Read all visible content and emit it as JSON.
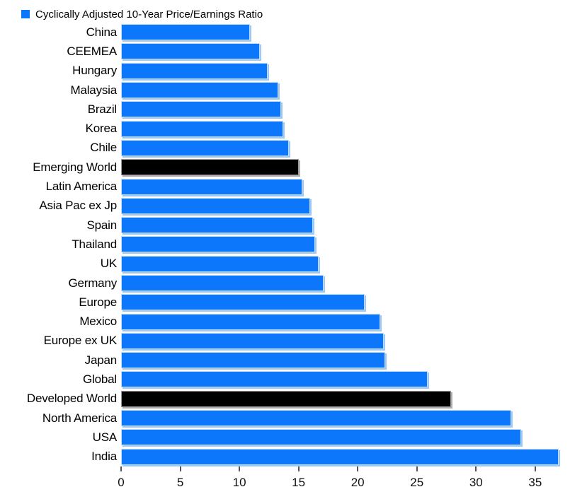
{
  "legend": {
    "label": "Cyclically Adjusted 10-Year Price/Earnings Ratio",
    "swatch_color": "#0d77fb"
  },
  "chart_data": {
    "type": "bar",
    "orientation": "horizontal",
    "title": "Cyclically Adjusted 10-Year Price/Earnings Ratio",
    "xlabel": "",
    "ylabel": "",
    "xlim": [
      0,
      37.5
    ],
    "x_ticks": [
      0,
      5,
      10,
      15,
      20,
      25,
      30,
      35
    ],
    "grid": false,
    "legend_position": "top-left",
    "bar_color": "#0d77fb",
    "highlight_color": "#000000",
    "categories": [
      "China",
      "CEEMEA",
      "Hungary",
      "Malaysia",
      "Brazil",
      "Korea",
      "Chile",
      "Emerging World",
      "Latin America",
      "Asia Pac ex Jp",
      "Spain",
      "Thailand",
      "UK",
      "Germany",
      "Europe",
      "Mexico",
      "Europe ex UK",
      "Japan",
      "Global",
      "Developed World",
      "North America",
      "USA",
      "India"
    ],
    "values": [
      10.9,
      11.7,
      12.4,
      13.3,
      13.5,
      13.7,
      14.2,
      15.0,
      15.3,
      16.0,
      16.2,
      16.4,
      16.7,
      17.1,
      20.6,
      21.9,
      22.2,
      22.3,
      25.9,
      27.9,
      33.0,
      33.8,
      37.0
    ],
    "highlight": [
      false,
      false,
      false,
      false,
      false,
      false,
      false,
      true,
      false,
      false,
      false,
      false,
      false,
      false,
      false,
      false,
      false,
      false,
      false,
      true,
      false,
      false,
      false
    ],
    "highlighted_categories": [
      "Emerging World",
      "Developed World"
    ]
  }
}
